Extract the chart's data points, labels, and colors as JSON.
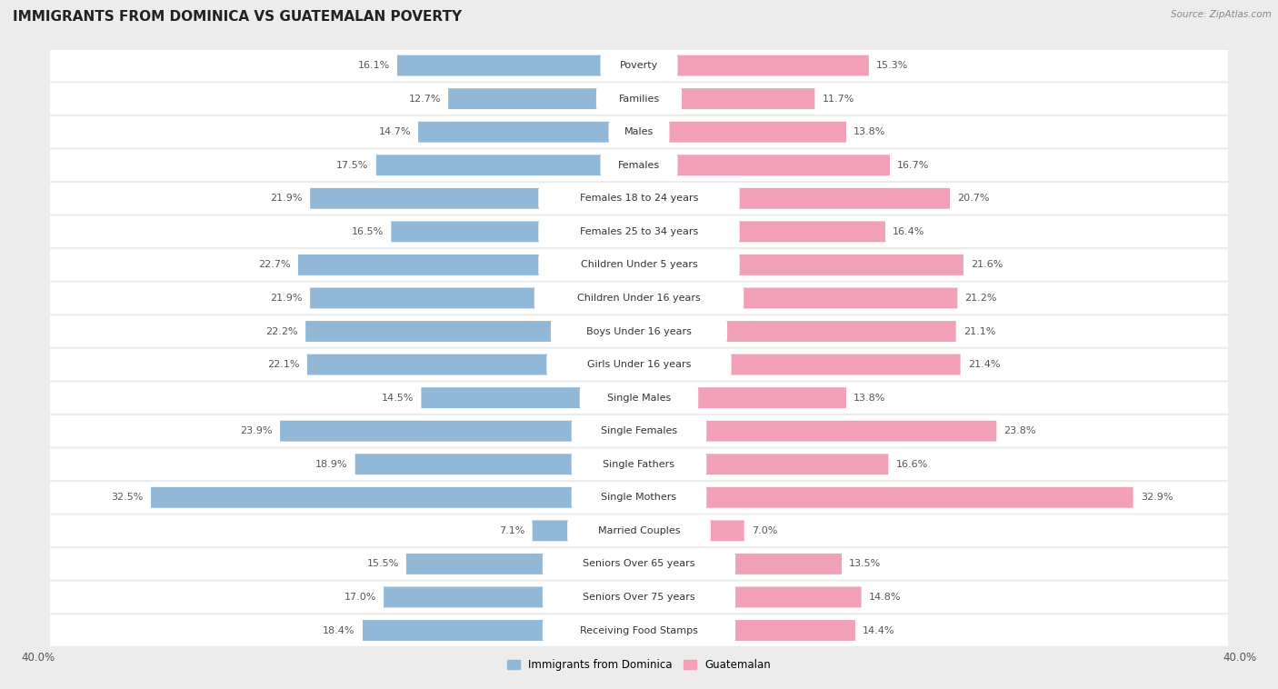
{
  "title": "IMMIGRANTS FROM DOMINICA VS GUATEMALAN POVERTY",
  "source": "Source: ZipAtlas.com",
  "categories": [
    "Poverty",
    "Families",
    "Males",
    "Females",
    "Females 18 to 24 years",
    "Females 25 to 34 years",
    "Children Under 5 years",
    "Children Under 16 years",
    "Boys Under 16 years",
    "Girls Under 16 years",
    "Single Males",
    "Single Females",
    "Single Fathers",
    "Single Mothers",
    "Married Couples",
    "Seniors Over 65 years",
    "Seniors Over 75 years",
    "Receiving Food Stamps"
  ],
  "left_values": [
    16.1,
    12.7,
    14.7,
    17.5,
    21.9,
    16.5,
    22.7,
    21.9,
    22.2,
    22.1,
    14.5,
    23.9,
    18.9,
    32.5,
    7.1,
    15.5,
    17.0,
    18.4
  ],
  "right_values": [
    15.3,
    11.7,
    13.8,
    16.7,
    20.7,
    16.4,
    21.6,
    21.2,
    21.1,
    21.4,
    13.8,
    23.8,
    16.6,
    32.9,
    7.0,
    13.5,
    14.8,
    14.4
  ],
  "left_color": "#92b8d8",
  "right_color": "#f2a0b8",
  "left_label": "Immigrants from Dominica",
  "right_label": "Guatemalan",
  "xlim": 40.0,
  "row_bg_color": "#ffffff",
  "outer_bg_color": "#ececec",
  "title_fontsize": 11,
  "label_fontsize": 8,
  "tick_fontsize": 8.5,
  "bar_height": 0.62,
  "value_color": "#555555",
  "center_label_color": "#333333",
  "highlight_bar_color_left": "#6699cc",
  "highlight_bar_color_right": "#e8809a",
  "highlight_index": 13
}
